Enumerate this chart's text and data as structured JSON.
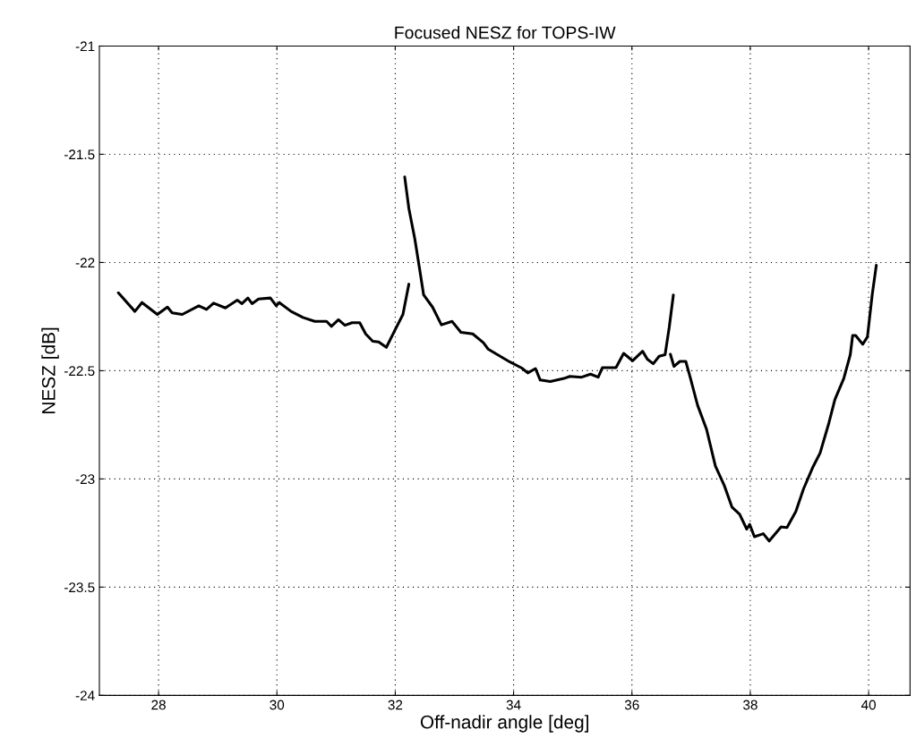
{
  "chart_data": {
    "type": "line",
    "title": "Focused NESZ for TOPS-IW",
    "xlabel": "Off-nadir angle [deg]",
    "ylabel": "NESZ [dB]",
    "xlim": [
      27.0,
      40.7
    ],
    "xticks": [
      28,
      30,
      32,
      34,
      36,
      38,
      40
    ],
    "ylim": [
      -24,
      -21
    ],
    "yticks": [
      -24,
      -23.5,
      -23,
      -22.5,
      -22,
      -21.5,
      -21
    ],
    "grid": true,
    "line_style": "solid",
    "series": [
      {
        "color": "#000000",
        "x": [
          27.32,
          27.6,
          27.72,
          27.98,
          28.15,
          28.23,
          28.4,
          28.68,
          28.81,
          28.93,
          29.13,
          29.33,
          29.41,
          29.51,
          29.58,
          29.69,
          29.89,
          29.99,
          30.04,
          30.24,
          30.44,
          30.64,
          30.84,
          30.92,
          31.04,
          31.15,
          31.27,
          31.4,
          31.5,
          31.62,
          31.72,
          31.85,
          32.0,
          32.13,
          32.23
        ],
        "values": [
          -22.14,
          -22.226,
          -22.185,
          -22.24,
          -22.206,
          -22.233,
          -22.24,
          -22.2,
          -22.217,
          -22.188,
          -22.21,
          -22.174,
          -22.19,
          -22.164,
          -22.19,
          -22.169,
          -22.164,
          -22.2,
          -22.185,
          -22.226,
          -22.254,
          -22.272,
          -22.272,
          -22.295,
          -22.264,
          -22.29,
          -22.278,
          -22.278,
          -22.33,
          -22.364,
          -22.367,
          -22.392,
          -22.31,
          -22.24,
          -22.1
        ]
      },
      {
        "color": "#000000",
        "x": [
          32.16,
          32.23,
          32.33,
          32.41,
          32.48,
          32.63,
          32.78,
          32.96,
          33.11,
          33.31,
          33.49,
          33.57,
          33.69,
          33.94,
          34.14,
          34.24,
          34.37,
          34.45,
          34.62,
          34.85,
          34.95,
          35.15,
          35.3,
          35.43,
          35.5,
          35.73,
          35.86,
          36.01,
          36.18,
          36.26,
          36.36,
          36.46,
          36.56,
          36.63,
          36.7
        ],
        "values": [
          -21.605,
          -21.75,
          -21.89,
          -22.027,
          -22.15,
          -22.206,
          -22.288,
          -22.272,
          -22.323,
          -22.33,
          -22.371,
          -22.4,
          -22.42,
          -22.46,
          -22.488,
          -22.51,
          -22.49,
          -22.543,
          -22.55,
          -22.536,
          -22.526,
          -22.53,
          -22.516,
          -22.53,
          -22.486,
          -22.486,
          -22.42,
          -22.454,
          -22.41,
          -22.447,
          -22.468,
          -22.433,
          -22.426,
          -22.3,
          -22.15
        ]
      },
      {
        "color": "#000000",
        "x": [
          36.65,
          36.71,
          36.81,
          36.91,
          36.99,
          37.11,
          37.26,
          37.41,
          37.56,
          37.69,
          37.82,
          37.94,
          37.99,
          38.07,
          38.22,
          38.32,
          38.52,
          38.62,
          38.77,
          38.9,
          39.05,
          39.18,
          39.33,
          39.43,
          39.58,
          39.69,
          39.73,
          39.78,
          39.9,
          39.98,
          40.06,
          40.13
        ],
        "values": [
          -22.424,
          -22.48,
          -22.457,
          -22.457,
          -22.536,
          -22.66,
          -22.77,
          -22.94,
          -23.03,
          -23.13,
          -23.163,
          -23.232,
          -23.21,
          -23.267,
          -23.253,
          -23.287,
          -23.222,
          -23.225,
          -23.15,
          -23.046,
          -22.95,
          -22.88,
          -22.74,
          -22.633,
          -22.536,
          -22.426,
          -22.337,
          -22.337,
          -22.378,
          -22.344,
          -22.15,
          -22.013
        ]
      }
    ]
  }
}
